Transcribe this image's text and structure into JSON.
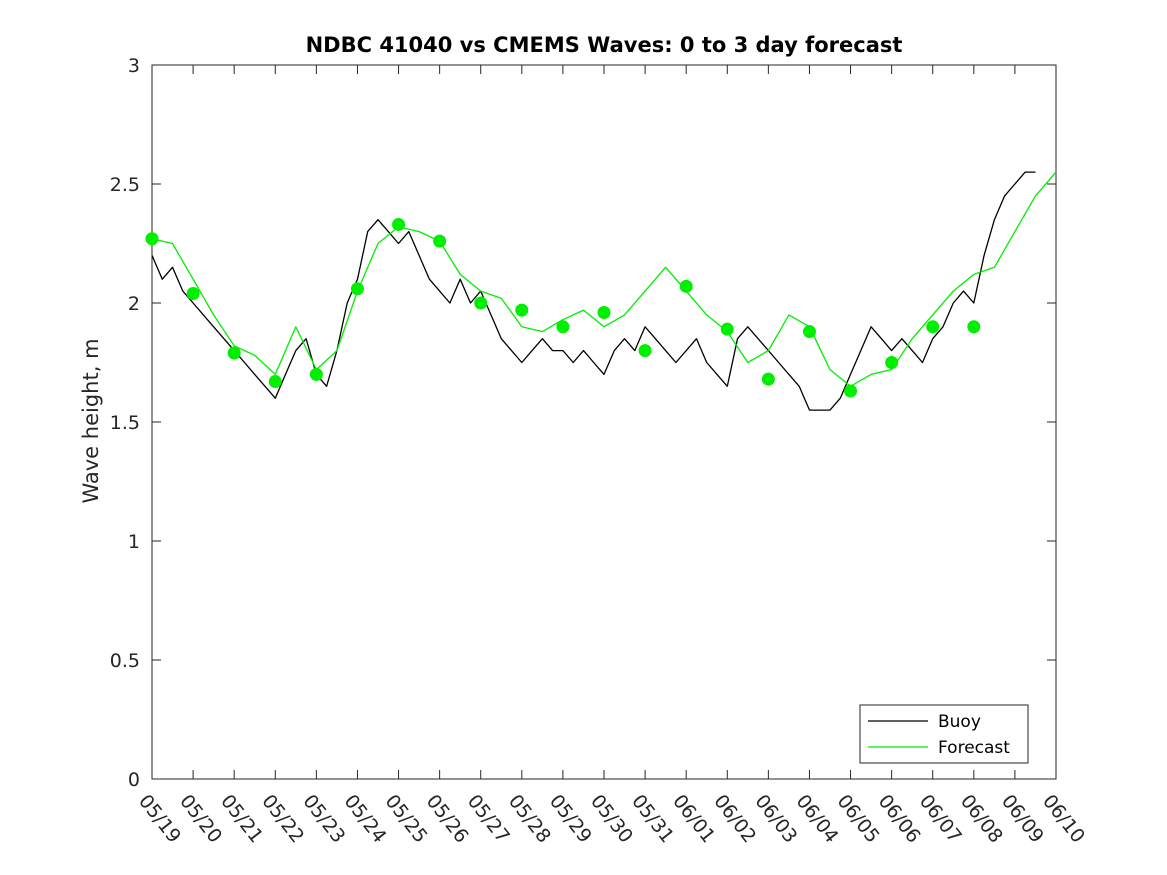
{
  "chart_data": {
    "type": "line",
    "title": "NDBC 41040 vs CMEMS Waves: 0 to 3 day forecast",
    "xlabel": "",
    "ylabel": "Wave height, m",
    "x_ticks": [
      "05/19",
      "05/20",
      "05/21",
      "05/22",
      "05/23",
      "05/24",
      "05/25",
      "05/26",
      "05/27",
      "05/28",
      "05/29",
      "05/30",
      "05/31",
      "06/01",
      "06/02",
      "06/03",
      "06/04",
      "06/05",
      "06/06",
      "06/07",
      "06/08",
      "06/09",
      "06/10"
    ],
    "y_ticks": [
      "0",
      "0.5",
      "1",
      "1.5",
      "2",
      "2.5",
      "3"
    ],
    "xlim": [
      0,
      22
    ],
    "ylim": [
      0,
      3
    ],
    "grid": false,
    "legend_position": "bottom-right",
    "colors": {
      "buoy": "#000000",
      "forecast": "#00ee00"
    },
    "series": [
      {
        "name": "Buoy",
        "x": [
          0,
          0.25,
          0.5,
          0.75,
          1,
          1.25,
          1.5,
          1.75,
          2,
          2.25,
          2.5,
          2.75,
          3,
          3.25,
          3.5,
          3.75,
          4,
          4.25,
          4.5,
          4.75,
          5,
          5.25,
          5.5,
          5.75,
          6,
          6.25,
          6.5,
          6.75,
          7,
          7.25,
          7.5,
          7.75,
          8,
          8.25,
          8.5,
          8.75,
          9,
          9.25,
          9.5,
          9.75,
          10,
          10.25,
          10.5,
          10.75,
          11,
          11.25,
          11.5,
          11.75,
          12,
          12.25,
          12.5,
          12.75,
          13,
          13.25,
          13.5,
          13.75,
          14,
          14.25,
          14.5,
          14.75,
          15,
          15.25,
          15.5,
          15.75,
          16,
          16.25,
          16.5,
          16.75,
          17,
          17.25,
          17.5,
          17.75,
          18,
          18.25,
          18.5,
          18.75,
          19,
          19.25,
          19.5,
          19.75,
          20,
          20.25,
          20.5,
          20.75,
          21,
          21.25,
          21.5
        ],
        "values": [
          2.2,
          2.1,
          2.15,
          2.05,
          2.0,
          1.95,
          1.9,
          1.85,
          1.8,
          1.75,
          1.7,
          1.65,
          1.6,
          1.7,
          1.8,
          1.85,
          1.7,
          1.65,
          1.8,
          2.0,
          2.1,
          2.3,
          2.35,
          2.3,
          2.25,
          2.3,
          2.2,
          2.1,
          2.05,
          2.0,
          2.1,
          2.0,
          2.05,
          1.95,
          1.85,
          1.8,
          1.75,
          1.8,
          1.85,
          1.8,
          1.8,
          1.75,
          1.8,
          1.75,
          1.7,
          1.8,
          1.85,
          1.8,
          1.9,
          1.85,
          1.8,
          1.75,
          1.8,
          1.85,
          1.75,
          1.7,
          1.65,
          1.85,
          1.9,
          1.85,
          1.8,
          1.75,
          1.7,
          1.65,
          1.55,
          1.55,
          1.55,
          1.6,
          1.7,
          1.8,
          1.9,
          1.85,
          1.8,
          1.85,
          1.8,
          1.75,
          1.85,
          1.9,
          2.0,
          2.05,
          2.0,
          2.2,
          2.35,
          2.45,
          2.5,
          2.55,
          2.55
        ]
      },
      {
        "name": "Forecast",
        "x": [
          0,
          0.5,
          1,
          1.5,
          2,
          2.5,
          3,
          3.5,
          4,
          4.5,
          5,
          5.5,
          6,
          6.5,
          7,
          7.5,
          8,
          8.5,
          9,
          9.5,
          10,
          10.5,
          11,
          11.5,
          12,
          12.5,
          13,
          13.5,
          14,
          14.5,
          15,
          15.5,
          16,
          16.5,
          17,
          17.5,
          18,
          18.5,
          19,
          19.5,
          20,
          20.5,
          21,
          21.5,
          22
        ],
        "values": [
          2.27,
          2.25,
          2.1,
          1.95,
          1.82,
          1.78,
          1.7,
          1.9,
          1.72,
          1.8,
          2.05,
          2.25,
          2.32,
          2.3,
          2.26,
          2.12,
          2.05,
          2.02,
          1.9,
          1.88,
          1.93,
          1.97,
          1.9,
          1.95,
          2.05,
          2.15,
          2.05,
          1.95,
          1.88,
          1.75,
          1.8,
          1.95,
          1.9,
          1.72,
          1.65,
          1.7,
          1.72,
          1.85,
          1.95,
          2.05,
          2.12,
          2.15,
          2.3,
          2.45,
          2.55
        ]
      }
    ],
    "markers": {
      "x": [
        0,
        1,
        2,
        3,
        4,
        5,
        6,
        7,
        8,
        9,
        10,
        11,
        12,
        13,
        14,
        15,
        16,
        17,
        18,
        19,
        20
      ],
      "values": [
        2.27,
        2.04,
        1.79,
        1.67,
        1.7,
        2.06,
        2.33,
        2.26,
        2.0,
        1.97,
        1.9,
        1.96,
        1.8,
        2.07,
        1.89,
        1.68,
        1.88,
        1.63,
        1.75,
        1.9,
        1.9
      ]
    }
  }
}
